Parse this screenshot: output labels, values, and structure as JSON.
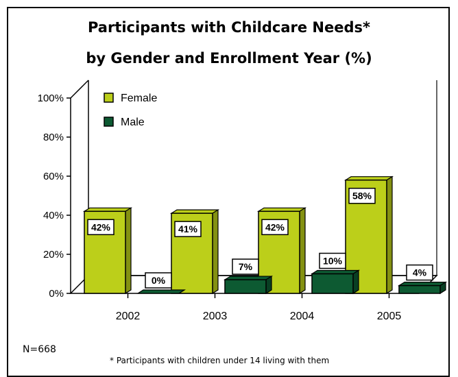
{
  "chart_data": {
    "type": "bar",
    "title": "Participants with Childcare Needs*",
    "subtitle": "by Gender and Enrollment Year (%)",
    "categories": [
      "2002",
      "2003",
      "2004",
      "2005"
    ],
    "series": [
      {
        "name": "Female",
        "values": [
          42,
          41,
          42,
          58
        ],
        "color": "#bccf1a"
      },
      {
        "name": "Male",
        "values": [
          0,
          7,
          10,
          4
        ],
        "color": "#0d5a32"
      }
    ],
    "data_labels": {
      "Female": [
        "42%",
        "41%",
        "42%",
        "58%"
      ],
      "Male": [
        "0%",
        "7%",
        "10%",
        "4%"
      ]
    },
    "y_ticks": [
      "0%",
      "20%",
      "40%",
      "60%",
      "80%",
      "100%"
    ],
    "ylim": [
      0,
      100
    ],
    "legend_position": "top-left",
    "grid": false,
    "three_d": true
  },
  "sample_note": "N=668",
  "footnote": "* Participants with children under 14 living with them"
}
